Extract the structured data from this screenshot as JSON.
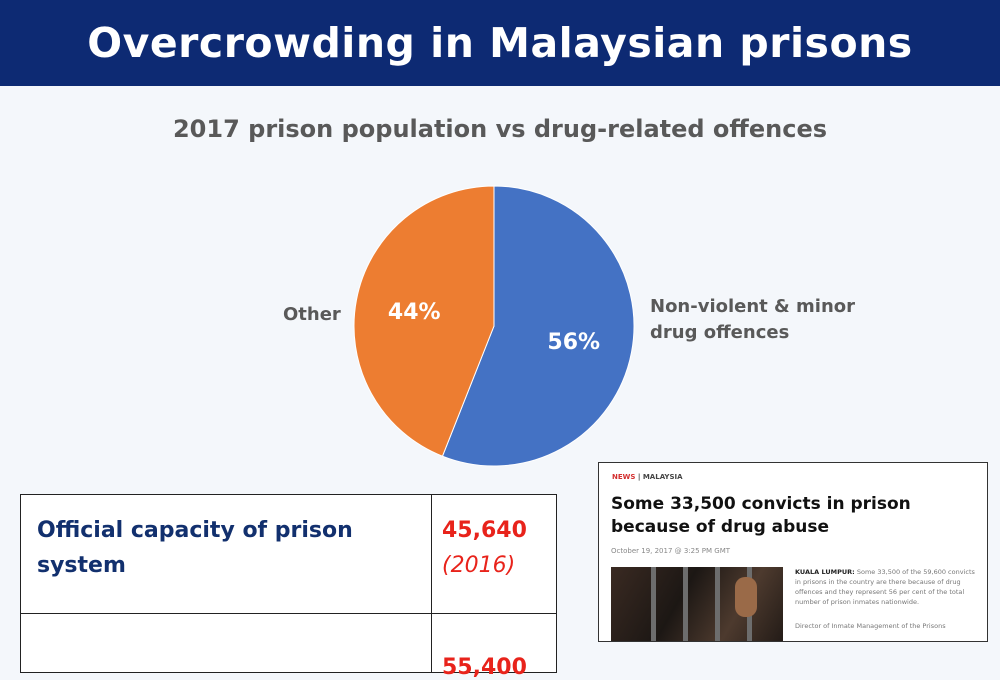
{
  "header": {
    "title": "Overcrowding in Malaysian prisons"
  },
  "chart_data": {
    "type": "pie",
    "title": "2017 prison population vs drug-related offences",
    "slices": [
      {
        "label": "Non-violent & minor drug offences",
        "label_lines": [
          "Non-violent & minor",
          "drug offences"
        ],
        "value": 56,
        "value_label": "56%",
        "color": "#4472c4"
      },
      {
        "label": "Other",
        "value": 44,
        "value_label": "44%",
        "color": "#ed7d31"
      }
    ],
    "start_angle_deg": 0,
    "direction": "clockwise",
    "legend": "none"
  },
  "table": {
    "rows": [
      {
        "label": "Official capacity of prison system",
        "value": "45,640",
        "note": "(2016)"
      },
      {
        "label": "",
        "value": "55,400",
        "note": ""
      }
    ]
  },
  "news": {
    "section": "NEWS",
    "category": "MALAYSIA",
    "headline": "Some 33,500 convicts in prison because of drug abuse",
    "date": "October 19, 2017 @ 3:25 PM GMT",
    "dateline": "KUALA LUMPUR:",
    "body": "Some 33,500 of the 59,600 convicts in prisons in the country are there because of drug offences and they represent 56 per cent of the total number of prison inmates nationwide.",
    "body2": "Director of Inmate Management of the Prisons"
  }
}
